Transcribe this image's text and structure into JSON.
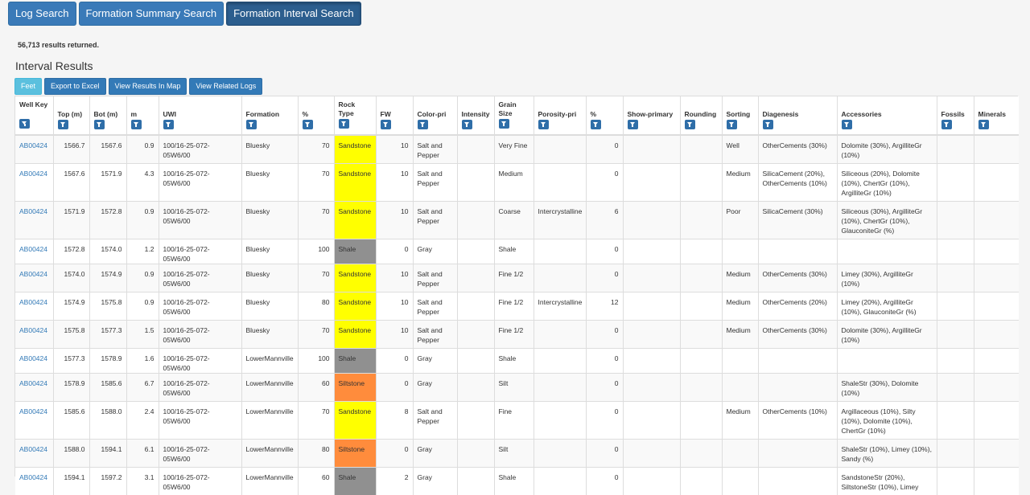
{
  "nav": {
    "tabs": [
      {
        "label": "Log Search",
        "active": false
      },
      {
        "label": "Formation Summary Search",
        "active": false
      },
      {
        "label": "Formation Interval Search",
        "active": true
      }
    ]
  },
  "results_count": "56,713 results returned.",
  "heading": "Interval Results",
  "actions": {
    "feet": "Feet",
    "export": "Export to Excel",
    "map": "View Results In Map",
    "related": "View Related Logs"
  },
  "colors": {
    "Sandstone": "#ffff00",
    "Shale": "#909090",
    "Siltstone": "#ff8c3c"
  },
  "columns": [
    {
      "key": "wellkey",
      "label": "Well Key"
    },
    {
      "key": "top",
      "label": "Top (m)"
    },
    {
      "key": "bot",
      "label": "Bot (m)"
    },
    {
      "key": "m",
      "label": "m"
    },
    {
      "key": "uwi",
      "label": "UWI"
    },
    {
      "key": "formation",
      "label": "Formation"
    },
    {
      "key": "pct",
      "label": "%"
    },
    {
      "key": "rock",
      "label": "Rock Type"
    },
    {
      "key": "fw",
      "label": "FW"
    },
    {
      "key": "color",
      "label": "Color-pri"
    },
    {
      "key": "intensity",
      "label": "Intensity"
    },
    {
      "key": "grain",
      "label": "Grain Size"
    },
    {
      "key": "porosity",
      "label": "Porosity-pri"
    },
    {
      "key": "pct2",
      "label": "%"
    },
    {
      "key": "show",
      "label": "Show-primary"
    },
    {
      "key": "rounding",
      "label": "Rounding"
    },
    {
      "key": "sorting",
      "label": "Sorting"
    },
    {
      "key": "diagenesis",
      "label": "Diagenesis"
    },
    {
      "key": "accessories",
      "label": "Accessories"
    },
    {
      "key": "fossils",
      "label": "Fossils"
    },
    {
      "key": "minerals",
      "label": "Minerals"
    }
  ],
  "rows": [
    {
      "wellkey": "AB00424",
      "top": "1566.7",
      "bot": "1567.6",
      "m": "0.9",
      "uwi": "100/16-25-072-05W6/00",
      "formation": "Bluesky",
      "pct": "70",
      "rock": "Sandstone",
      "fw": "10",
      "color": "Salt and Pepper",
      "intensity": "",
      "grain": "Very Fine",
      "porosity": "",
      "pct2": "0",
      "show": "",
      "rounding": "",
      "sorting": "Well",
      "diagenesis": "OtherCements (30%)",
      "accessories": "Dolomite (30%), ArgilliteGr (10%)",
      "fossils": "",
      "minerals": ""
    },
    {
      "wellkey": "AB00424",
      "top": "1567.6",
      "bot": "1571.9",
      "m": "4.3",
      "uwi": "100/16-25-072-05W6/00",
      "formation": "Bluesky",
      "pct": "70",
      "rock": "Sandstone",
      "fw": "10",
      "color": "Salt and Pepper",
      "intensity": "",
      "grain": "Medium",
      "porosity": "",
      "pct2": "0",
      "show": "",
      "rounding": "",
      "sorting": "Medium",
      "diagenesis": "SilicaCement (20%), OtherCements (10%)",
      "accessories": "Siliceous (20%), Dolomite (10%), ChertGr (10%), ArgilliteGr (10%)",
      "fossils": "",
      "minerals": ""
    },
    {
      "wellkey": "AB00424",
      "top": "1571.9",
      "bot": "1572.8",
      "m": "0.9",
      "uwi": "100/16-25-072-05W6/00",
      "formation": "Bluesky",
      "pct": "70",
      "rock": "Sandstone",
      "fw": "10",
      "color": "Salt and Pepper",
      "intensity": "",
      "grain": "Coarse",
      "porosity": "Intercrystalline",
      "pct2": "6",
      "show": "",
      "rounding": "",
      "sorting": "Poor",
      "diagenesis": "SilicaCement (30%)",
      "accessories": "Siliceous (30%), ArgilliteGr (10%), ChertGr (10%), GlauconiteGr (%)",
      "fossils": "",
      "minerals": ""
    },
    {
      "wellkey": "AB00424",
      "top": "1572.8",
      "bot": "1574.0",
      "m": "1.2",
      "uwi": "100/16-25-072-05W6/00",
      "formation": "Bluesky",
      "pct": "100",
      "rock": "Shale",
      "fw": "0",
      "color": "Gray",
      "intensity": "",
      "grain": "Shale",
      "porosity": "",
      "pct2": "0",
      "show": "",
      "rounding": "",
      "sorting": "",
      "diagenesis": "",
      "accessories": "",
      "fossils": "",
      "minerals": ""
    },
    {
      "wellkey": "AB00424",
      "top": "1574.0",
      "bot": "1574.9",
      "m": "0.9",
      "uwi": "100/16-25-072-05W6/00",
      "formation": "Bluesky",
      "pct": "70",
      "rock": "Sandstone",
      "fw": "10",
      "color": "Salt and Pepper",
      "intensity": "",
      "grain": "Fine 1/2",
      "porosity": "",
      "pct2": "0",
      "show": "",
      "rounding": "",
      "sorting": "Medium",
      "diagenesis": "OtherCements (30%)",
      "accessories": "Limey (30%), ArgilliteGr (10%)",
      "fossils": "",
      "minerals": ""
    },
    {
      "wellkey": "AB00424",
      "top": "1574.9",
      "bot": "1575.8",
      "m": "0.9",
      "uwi": "100/16-25-072-05W6/00",
      "formation": "Bluesky",
      "pct": "80",
      "rock": "Sandstone",
      "fw": "10",
      "color": "Salt and Pepper",
      "intensity": "",
      "grain": "Fine 1/2",
      "porosity": "Intercrystalline",
      "pct2": "12",
      "show": "",
      "rounding": "",
      "sorting": "Medium",
      "diagenesis": "OtherCements (20%)",
      "accessories": "Limey (20%), ArgilliteGr (10%), GlauconiteGr (%)",
      "fossils": "",
      "minerals": ""
    },
    {
      "wellkey": "AB00424",
      "top": "1575.8",
      "bot": "1577.3",
      "m": "1.5",
      "uwi": "100/16-25-072-05W6/00",
      "formation": "Bluesky",
      "pct": "70",
      "rock": "Sandstone",
      "fw": "10",
      "color": "Salt and Pepper",
      "intensity": "",
      "grain": "Fine 1/2",
      "porosity": "",
      "pct2": "0",
      "show": "",
      "rounding": "",
      "sorting": "Medium",
      "diagenesis": "OtherCements (30%)",
      "accessories": "Dolomite (30%), ArgilliteGr (10%)",
      "fossils": "",
      "minerals": ""
    },
    {
      "wellkey": "AB00424",
      "top": "1577.3",
      "bot": "1578.9",
      "m": "1.6",
      "uwi": "100/16-25-072-05W6/00",
      "formation": "LowerMannville",
      "pct": "100",
      "rock": "Shale",
      "fw": "0",
      "color": "Gray",
      "intensity": "",
      "grain": "Shale",
      "porosity": "",
      "pct2": "0",
      "show": "",
      "rounding": "",
      "sorting": "",
      "diagenesis": "",
      "accessories": "",
      "fossils": "",
      "minerals": ""
    },
    {
      "wellkey": "AB00424",
      "top": "1578.9",
      "bot": "1585.6",
      "m": "6.7",
      "uwi": "100/16-25-072-05W6/00",
      "formation": "LowerMannville",
      "pct": "60",
      "rock": "Siltstone",
      "fw": "0",
      "color": "Gray",
      "intensity": "",
      "grain": "Silt",
      "porosity": "",
      "pct2": "0",
      "show": "",
      "rounding": "",
      "sorting": "",
      "diagenesis": "",
      "accessories": "ShaleStr (30%), Dolomite (10%)",
      "fossils": "",
      "minerals": ""
    },
    {
      "wellkey": "AB00424",
      "top": "1585.6",
      "bot": "1588.0",
      "m": "2.4",
      "uwi": "100/16-25-072-05W6/00",
      "formation": "LowerMannville",
      "pct": "70",
      "rock": "Sandstone",
      "fw": "8",
      "color": "Salt and Pepper",
      "intensity": "",
      "grain": "Fine",
      "porosity": "",
      "pct2": "0",
      "show": "",
      "rounding": "",
      "sorting": "Medium",
      "diagenesis": "OtherCements (10%)",
      "accessories": "Argillaceous (10%), Silty (10%), Dolomite (10%), ChertGr (10%)",
      "fossils": "",
      "minerals": ""
    },
    {
      "wellkey": "AB00424",
      "top": "1588.0",
      "bot": "1594.1",
      "m": "6.1",
      "uwi": "100/16-25-072-05W6/00",
      "formation": "LowerMannville",
      "pct": "80",
      "rock": "Siltstone",
      "fw": "0",
      "color": "Gray",
      "intensity": "",
      "grain": "Silt",
      "porosity": "",
      "pct2": "0",
      "show": "",
      "rounding": "",
      "sorting": "",
      "diagenesis": "",
      "accessories": "ShaleStr (10%), Limey (10%), Sandy (%)",
      "fossils": "",
      "minerals": ""
    },
    {
      "wellkey": "AB00424",
      "top": "1594.1",
      "bot": "1597.2",
      "m": "3.1",
      "uwi": "100/16-25-072-05W6/00",
      "formation": "LowerMannville",
      "pct": "60",
      "rock": "Shale",
      "fw": "2",
      "color": "Gray",
      "intensity": "",
      "grain": "Shale",
      "porosity": "",
      "pct2": "0",
      "show": "",
      "rounding": "",
      "sorting": "",
      "diagenesis": "",
      "accessories": "SandstoneStr (20%), SiltstoneStr (10%), Limey",
      "fossils": "",
      "minerals": ""
    }
  ]
}
